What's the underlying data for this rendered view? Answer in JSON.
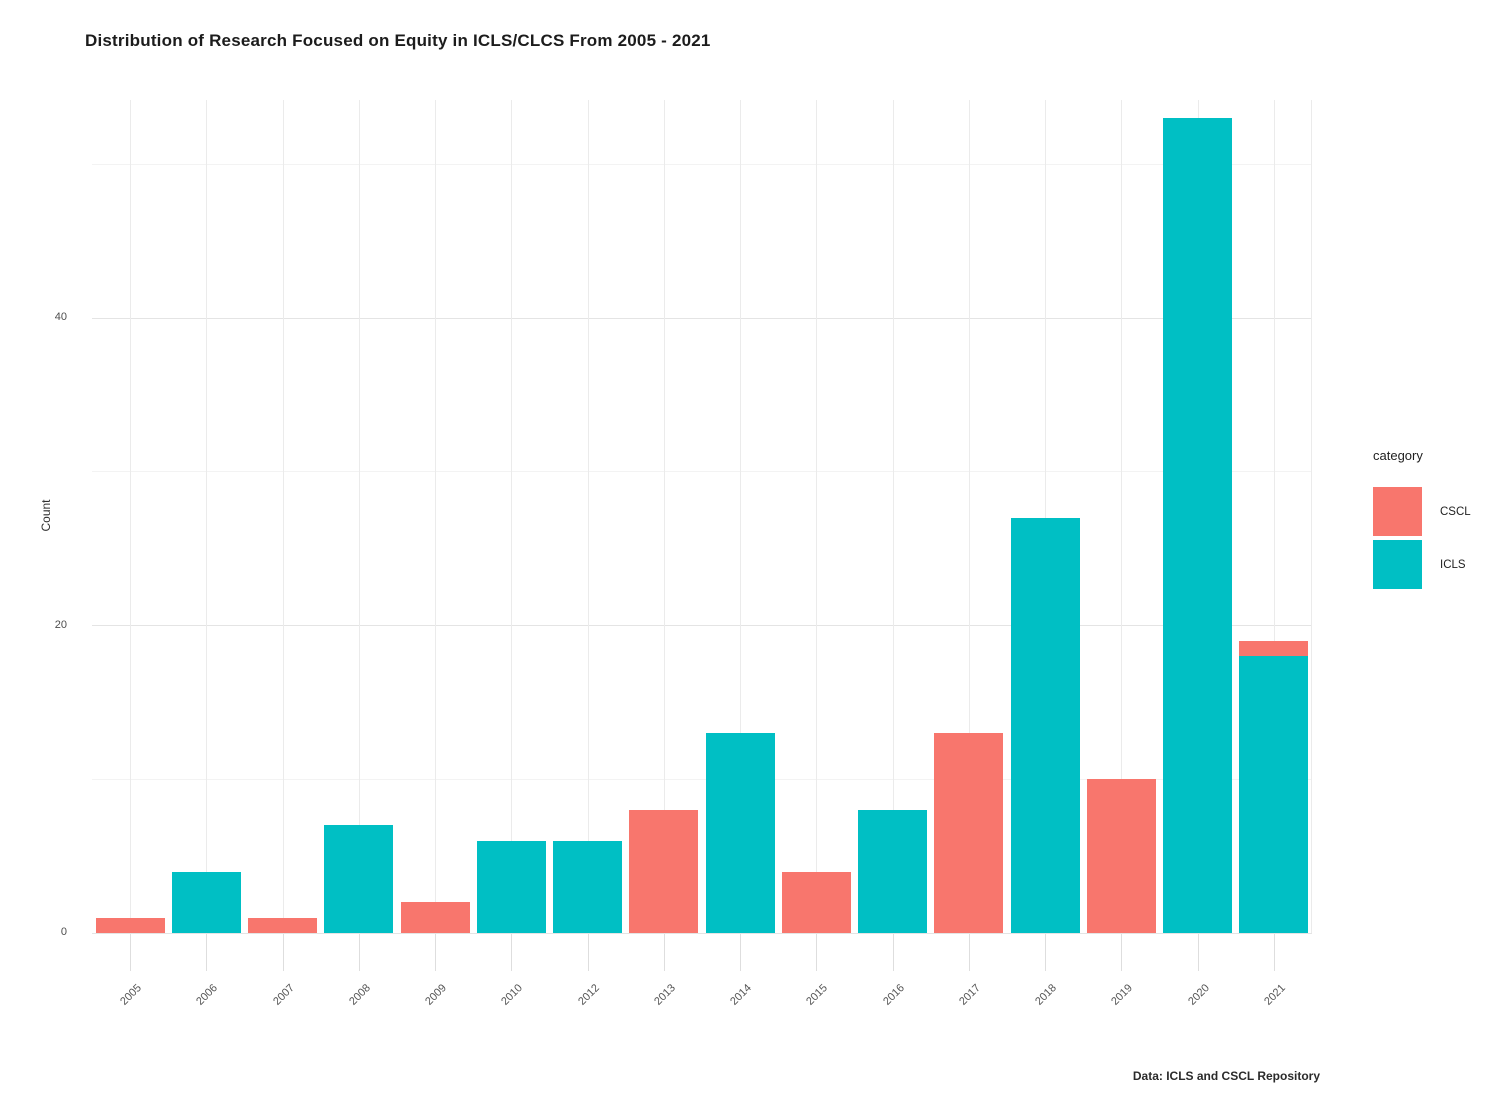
{
  "chart_data": {
    "type": "bar",
    "stacked": true,
    "title": "Distribution of Research Focused on Equity in ICLS/CLCS From 2005 - 2021",
    "xlabel": "",
    "ylabel": "Count",
    "caption": "Data: ICLS and CSCL Repository",
    "legend_title": "category",
    "legend_position": "right",
    "grid": true,
    "categories": [
      "2005",
      "2006",
      "2007",
      "2008",
      "2009",
      "2010",
      "2012",
      "2013",
      "2014",
      "2015",
      "2016",
      "2017",
      "2018",
      "2019",
      "2020",
      "2021"
    ],
    "series": [
      {
        "name": "CSCL",
        "color": "#f8766d",
        "values": [
          1,
          0,
          1,
          0,
          2,
          0,
          0,
          8,
          0,
          4,
          0,
          13,
          0,
          10,
          0,
          1
        ]
      },
      {
        "name": "ICLS",
        "color": "#00bfc4",
        "values": [
          0,
          4,
          0,
          7,
          0,
          6,
          6,
          0,
          13,
          0,
          8,
          0,
          27,
          0,
          53,
          18
        ]
      }
    ],
    "stack_order_top_to_bottom": [
      "CSCL",
      "ICLS"
    ],
    "yticks": [
      0,
      20,
      40
    ],
    "yminor_ticks": [
      10,
      30,
      50
    ],
    "ylim": [
      0,
      54.2
    ]
  }
}
